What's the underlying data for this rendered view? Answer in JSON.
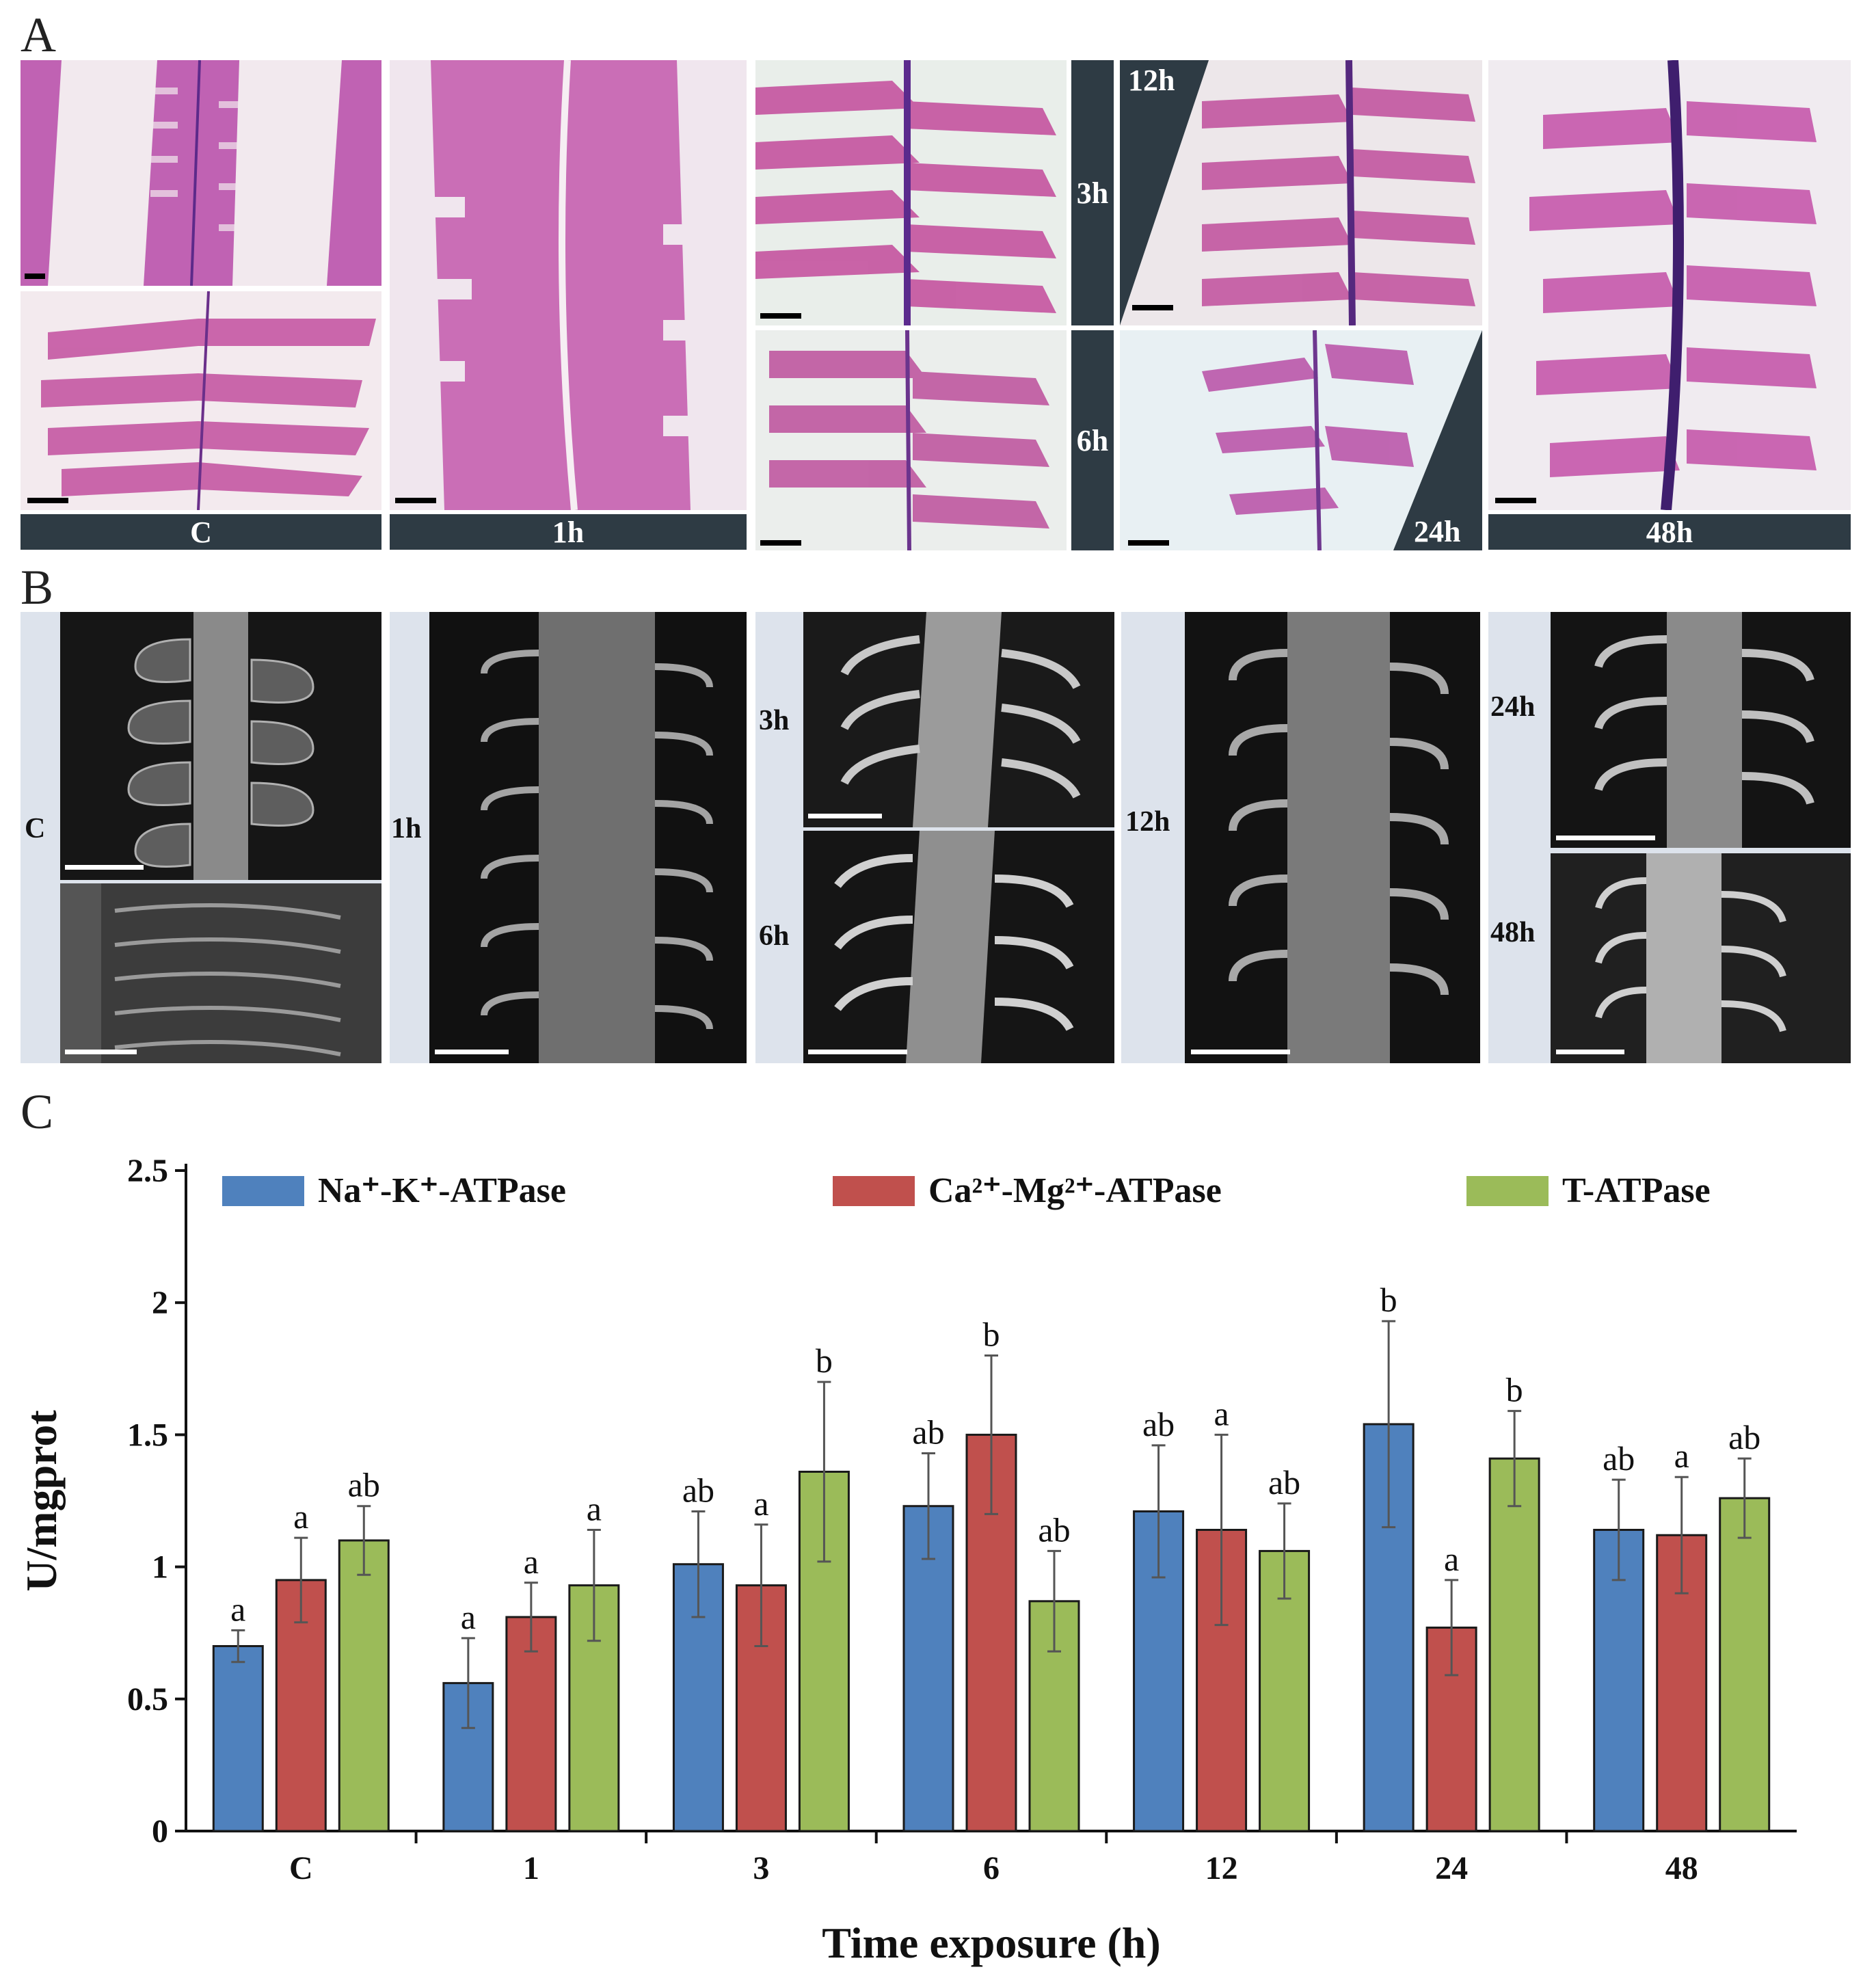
{
  "panelA": {
    "letter": "A",
    "labels": {
      "c": "C",
      "h1": "1h",
      "h3": "3h",
      "h6": "6h",
      "h12": "12h",
      "h24": "24h",
      "h48": "48h"
    }
  },
  "panelB": {
    "letter": "B",
    "labels": {
      "c": "C",
      "h1": "1h",
      "h3": "3h",
      "h6": "6h",
      "h12": "12h",
      "h24": "24h",
      "h48": "48h"
    }
  },
  "panelC": {
    "letter": "C"
  },
  "colors": {
    "na_k": "#4f81bd",
    "ca_mg": "#c0504d",
    "t": "#9bbb59",
    "dark_label": "#2e3b44",
    "sem_strip": "#dde3ec"
  },
  "chart_data": {
    "type": "bar",
    "categories": [
      "C",
      "1",
      "3",
      "6",
      "12",
      "24",
      "48"
    ],
    "series": [
      {
        "name": "Na⁺-K⁺-ATPase",
        "values": [
          0.7,
          0.56,
          1.01,
          1.23,
          1.21,
          1.54,
          1.14
        ],
        "errors": [
          0.06,
          0.17,
          0.2,
          0.2,
          0.25,
          0.39,
          0.19
        ],
        "letters": [
          "a",
          "a",
          "ab",
          "ab",
          "ab",
          "b",
          "ab"
        ]
      },
      {
        "name": "Ca²⁺-Mg²⁺-ATPase",
        "values": [
          0.95,
          0.81,
          0.93,
          1.5,
          1.14,
          0.77,
          1.12
        ],
        "errors": [
          0.16,
          0.13,
          0.23,
          0.3,
          0.36,
          0.18,
          0.22
        ],
        "letters": [
          "a",
          "a",
          "a",
          "b",
          "a",
          "a",
          "a"
        ]
      },
      {
        "name": "T-ATPase",
        "values": [
          1.1,
          0.93,
          1.36,
          0.87,
          1.06,
          1.41,
          1.26
        ],
        "errors": [
          0.13,
          0.21,
          0.34,
          0.19,
          0.18,
          0.18,
          0.15
        ],
        "letters": [
          "ab",
          "a",
          "b",
          "ab",
          "ab",
          "b",
          "ab"
        ]
      }
    ],
    "yticks": [
      "0",
      "0.5",
      "1",
      "1.5",
      "2",
      "2.5"
    ],
    "ylim": [
      0,
      2.5
    ],
    "xlabel": "Time exposure (h)",
    "ylabel": "U/mgprot",
    "legend": "top"
  }
}
